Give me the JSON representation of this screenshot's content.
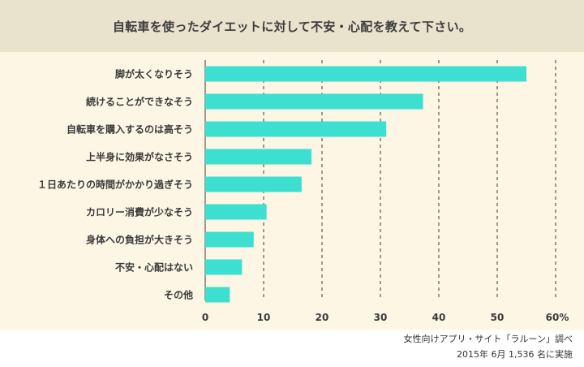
{
  "chart_data": {
    "type": "bar",
    "orientation": "horizontal",
    "title": "自転車を使ったダイエットに対して不安・心配を教えて下さい。",
    "categories": [
      "脚が太くなりそう",
      "続けることができなそう",
      "自転車を購入するのは高そう",
      "上半身に効果がなさそう",
      "１日あたりの時間がかかり過ぎそう",
      "カロリー消費が少なそう",
      "身体への負担が大きそう",
      "不安・心配はない",
      "その他"
    ],
    "values": [
      55,
      37.3,
      31,
      18.2,
      16.5,
      10.5,
      8.3,
      6.3,
      4.2
    ],
    "xlim": [
      0,
      60
    ],
    "xticks": [
      "0",
      "10",
      "20",
      "30",
      "40",
      "50",
      "60%"
    ],
    "grid": "vertical-dashed",
    "bar_color": "#3ddfd0"
  },
  "source": {
    "line1": "女性向けアプリ・サイト「ラルーン」調べ",
    "line2": "2015年 6月 1,536 名に実施"
  }
}
